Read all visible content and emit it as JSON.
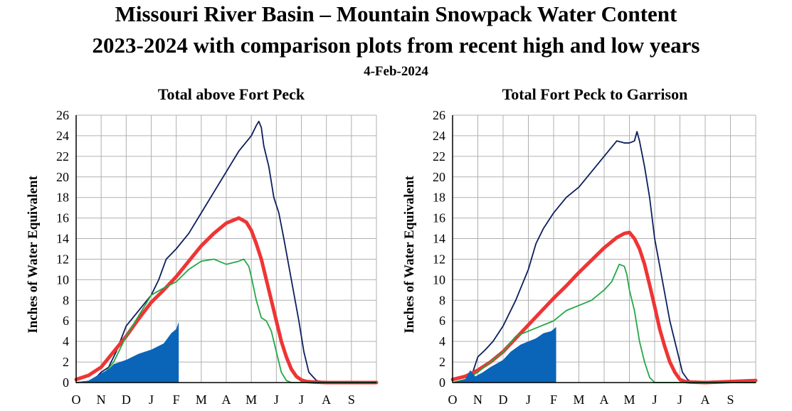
{
  "title": "Missouri River Basin – Mountain Snowpack Water Content",
  "subtitle": "2023-2024 with comparison plots from recent high and low years",
  "date": "4-Feb-2024",
  "colors": {
    "high_year": "#0b1f5c",
    "normal": "#ee3535",
    "low_year": "#22a844",
    "current": "#0a64b8",
    "grid": "#b0b0b0"
  },
  "chart_data": [
    {
      "type": "line",
      "title": "Total above Fort Peck",
      "ylabel": "Inches of Water Equivalent",
      "xlabel": "",
      "x_ticks": [
        "O",
        "N",
        "D",
        "J",
        "F",
        "M",
        "A",
        "M",
        "J",
        "J",
        "A",
        "S"
      ],
      "ylim": [
        0,
        26
      ],
      "y_ticks": [
        0,
        2,
        4,
        6,
        8,
        10,
        12,
        14,
        16,
        18,
        20,
        22,
        24,
        26
      ],
      "grid": true,
      "series": [
        {
          "key": "high",
          "x": [
            0,
            0.5,
            0.8,
            1,
            1.3,
            1.6,
            2,
            2.5,
            3,
            3.3,
            3.6,
            4,
            4.5,
            5,
            5.5,
            6,
            6.5,
            7,
            7.2,
            7.3,
            7.4,
            7.5,
            7.7,
            7.9,
            8.1,
            8.3,
            8.6,
            8.9,
            9.1,
            9.3,
            9.6,
            10,
            12
          ],
          "y": [
            0,
            0.1,
            0.5,
            1,
            1.5,
            3,
            5.5,
            7,
            8.5,
            10,
            12,
            13,
            14.5,
            16.5,
            18.5,
            20.5,
            22.5,
            24,
            25,
            25.4,
            24.8,
            23,
            21,
            18,
            16.5,
            14,
            10,
            6,
            3,
            1,
            0.2,
            0,
            0
          ]
        },
        {
          "key": "normal",
          "x": [
            0,
            0.5,
            1,
            1.5,
            2,
            2.5,
            3,
            3.5,
            4,
            4.5,
            5,
            5.5,
            6,
            6.5,
            6.8,
            7,
            7.2,
            7.4,
            7.6,
            7.8,
            8,
            8.2,
            8.4,
            8.6,
            8.8,
            9,
            9.2,
            9.5,
            10,
            12
          ],
          "y": [
            0.3,
            0.7,
            1.5,
            3,
            4.5,
            6.2,
            7.8,
            9,
            10.3,
            11.8,
            13.3,
            14.5,
            15.5,
            16,
            15.6,
            14.8,
            13.5,
            12,
            10,
            8,
            6,
            4,
            2.5,
            1.3,
            0.6,
            0.25,
            0.1,
            0.05,
            0,
            0
          ]
        },
        {
          "key": "low",
          "x": [
            0,
            0.5,
            1,
            1.5,
            2,
            2.5,
            3,
            3.5,
            4,
            4.5,
            5,
            5.5,
            6,
            6.5,
            6.7,
            6.9,
            7,
            7.2,
            7.4,
            7.6,
            7.8,
            8,
            8.2,
            8.4,
            8.6,
            8.8,
            9,
            12
          ],
          "y": [
            0,
            0.1,
            0.5,
            2,
            4.5,
            6.5,
            8.5,
            9.2,
            9.8,
            11,
            11.8,
            12,
            11.5,
            11.8,
            12,
            11.3,
            10.3,
            8,
            6.3,
            6,
            5,
            3,
            1,
            0.2,
            0,
            0,
            0,
            0
          ]
        },
        {
          "key": "current",
          "x": [
            0,
            0.5,
            1,
            1.3,
            1.5,
            2,
            2.5,
            3,
            3.5,
            3.8,
            4,
            4.1,
            4.1
          ],
          "y": [
            0,
            0.2,
            0.9,
            1.3,
            1.8,
            2.2,
            2.8,
            3.2,
            3.8,
            4.8,
            5.2,
            5.9,
            0
          ]
        }
      ]
    },
    {
      "type": "line",
      "title": "Total Fort Peck to Garrison",
      "ylabel": "Inches of Water Equivalent",
      "xlabel": "",
      "x_ticks": [
        "O",
        "N",
        "D",
        "J",
        "F",
        "M",
        "A",
        "M",
        "J",
        "J",
        "A",
        "S"
      ],
      "ylim": [
        0,
        26
      ],
      "y_ticks": [
        0,
        2,
        4,
        6,
        8,
        10,
        12,
        14,
        16,
        18,
        20,
        22,
        24,
        26
      ],
      "grid": true,
      "series": [
        {
          "key": "high",
          "x": [
            0,
            0.5,
            0.8,
            1,
            1.3,
            1.6,
            2,
            2.5,
            3,
            3.3,
            3.6,
            4,
            4.5,
            5,
            5.5,
            6,
            6.5,
            6.8,
            7,
            7.2,
            7.3,
            7.4,
            7.6,
            7.8,
            8,
            8.3,
            8.6,
            8.9,
            9.1,
            9.3,
            9.5,
            12
          ],
          "y": [
            0.2,
            0.5,
            1,
            2.5,
            3.2,
            4,
            5.5,
            8,
            11,
            13.5,
            15,
            16.5,
            18,
            19,
            20.5,
            22,
            23.5,
            23.3,
            23.3,
            23.5,
            24.4,
            23.5,
            21,
            18,
            14,
            10,
            6,
            3,
            1,
            0.3,
            0,
            0
          ]
        },
        {
          "key": "normal",
          "x": [
            0,
            0.5,
            1,
            1.5,
            2,
            2.5,
            3,
            3.5,
            4,
            4.5,
            5,
            5.5,
            6,
            6.5,
            6.8,
            7,
            7.2,
            7.4,
            7.6,
            7.8,
            8,
            8.2,
            8.4,
            8.6,
            8.8,
            9,
            9.2,
            9.4,
            10,
            12
          ],
          "y": [
            0.3,
            0.6,
            1.2,
            2,
            3,
            4.3,
            5.6,
            6.9,
            8.2,
            9.4,
            10.7,
            11.9,
            13.1,
            14.1,
            14.5,
            14.6,
            14,
            13,
            11.5,
            9.5,
            7.4,
            5.2,
            3.5,
            2,
            1,
            0.3,
            0.1,
            0.05,
            0,
            0.2
          ]
        },
        {
          "key": "low",
          "x": [
            0,
            0.5,
            1,
            1.5,
            2,
            2.5,
            3,
            3.5,
            4,
            4.5,
            5,
            5.5,
            6,
            6.3,
            6.6,
            6.8,
            6.9,
            7,
            7.2,
            7.4,
            7.6,
            7.8,
            8,
            8.2,
            8.4,
            12
          ],
          "y": [
            0,
            0.3,
            1,
            2,
            3,
            4.5,
            5,
            5.5,
            6,
            7,
            7.5,
            8,
            9,
            9.8,
            11.5,
            11.3,
            10.5,
            9,
            7,
            4,
            2,
            0.5,
            0,
            0,
            0,
            0
          ]
        },
        {
          "key": "current",
          "x": [
            0,
            0.5,
            0.7,
            0.9,
            1.2,
            1.5,
            2,
            2.3,
            2.7,
            3,
            3.3,
            3.6,
            3.9,
            4.1,
            4.1
          ],
          "y": [
            0,
            0.3,
            1.2,
            0.6,
            1,
            1.5,
            2.2,
            3,
            3.7,
            4,
            4.3,
            4.8,
            5,
            5.4,
            0
          ]
        }
      ]
    }
  ]
}
